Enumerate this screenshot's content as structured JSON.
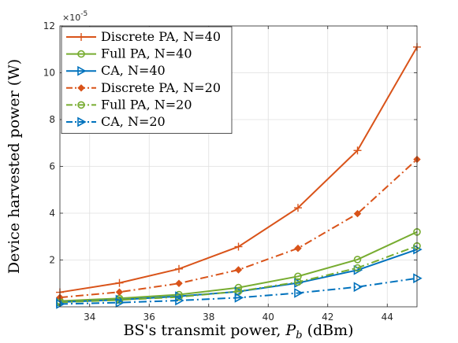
{
  "chart_data": {
    "type": "line",
    "xlabel_prefix": "BS's transmit power, ",
    "xlabel_var": "P",
    "xlabel_sub": "b",
    "xlabel_unit": " (dBm)",
    "ylabel": "Device harvested power (W)",
    "y_exponent_base": "×10",
    "y_exponent": "-5",
    "xlim": [
      33,
      45
    ],
    "ylim": [
      0,
      12
    ],
    "xticks": [
      "34",
      "36",
      "38",
      "40",
      "42",
      "44"
    ],
    "yticks": [
      "2",
      "4",
      "6",
      "8",
      "10",
      "12"
    ],
    "grid": true,
    "legend_position": "top-left",
    "x": [
      33,
      35,
      37,
      39,
      41,
      43,
      45
    ],
    "series": [
      {
        "name": "Discrete PA, N=40",
        "values": [
          0.62,
          1.02,
          1.62,
          2.57,
          4.23,
          6.68,
          11.1
        ],
        "color": "#D95319",
        "dash": "solid",
        "marker": "plus"
      },
      {
        "name": "Full PA, N=40",
        "values": [
          0.25,
          0.36,
          0.52,
          0.82,
          1.3,
          2.02,
          3.2
        ],
        "color": "#77AC30",
        "dash": "solid",
        "marker": "circle"
      },
      {
        "name": "CA, N=40",
        "values": [
          0.2,
          0.3,
          0.45,
          0.65,
          1.02,
          1.57,
          2.45
        ],
        "color": "#0072BD",
        "dash": "solid",
        "marker": "triangle-right"
      },
      {
        "name": "Discrete PA, N=20",
        "values": [
          0.4,
          0.63,
          1.0,
          1.58,
          2.5,
          3.98,
          6.3
        ],
        "color": "#D95319",
        "dash": "dashdot",
        "marker": "diamond"
      },
      {
        "name": "Full PA, N=20",
        "values": [
          0.19,
          0.29,
          0.42,
          0.66,
          1.06,
          1.66,
          2.6
        ],
        "color": "#77AC30",
        "dash": "dashdot",
        "marker": "circle"
      },
      {
        "name": "CA, N=20",
        "values": [
          0.12,
          0.18,
          0.27,
          0.39,
          0.59,
          0.85,
          1.22
        ],
        "color": "#0072BD",
        "dash": "dashdot",
        "marker": "triangle-right"
      }
    ]
  }
}
